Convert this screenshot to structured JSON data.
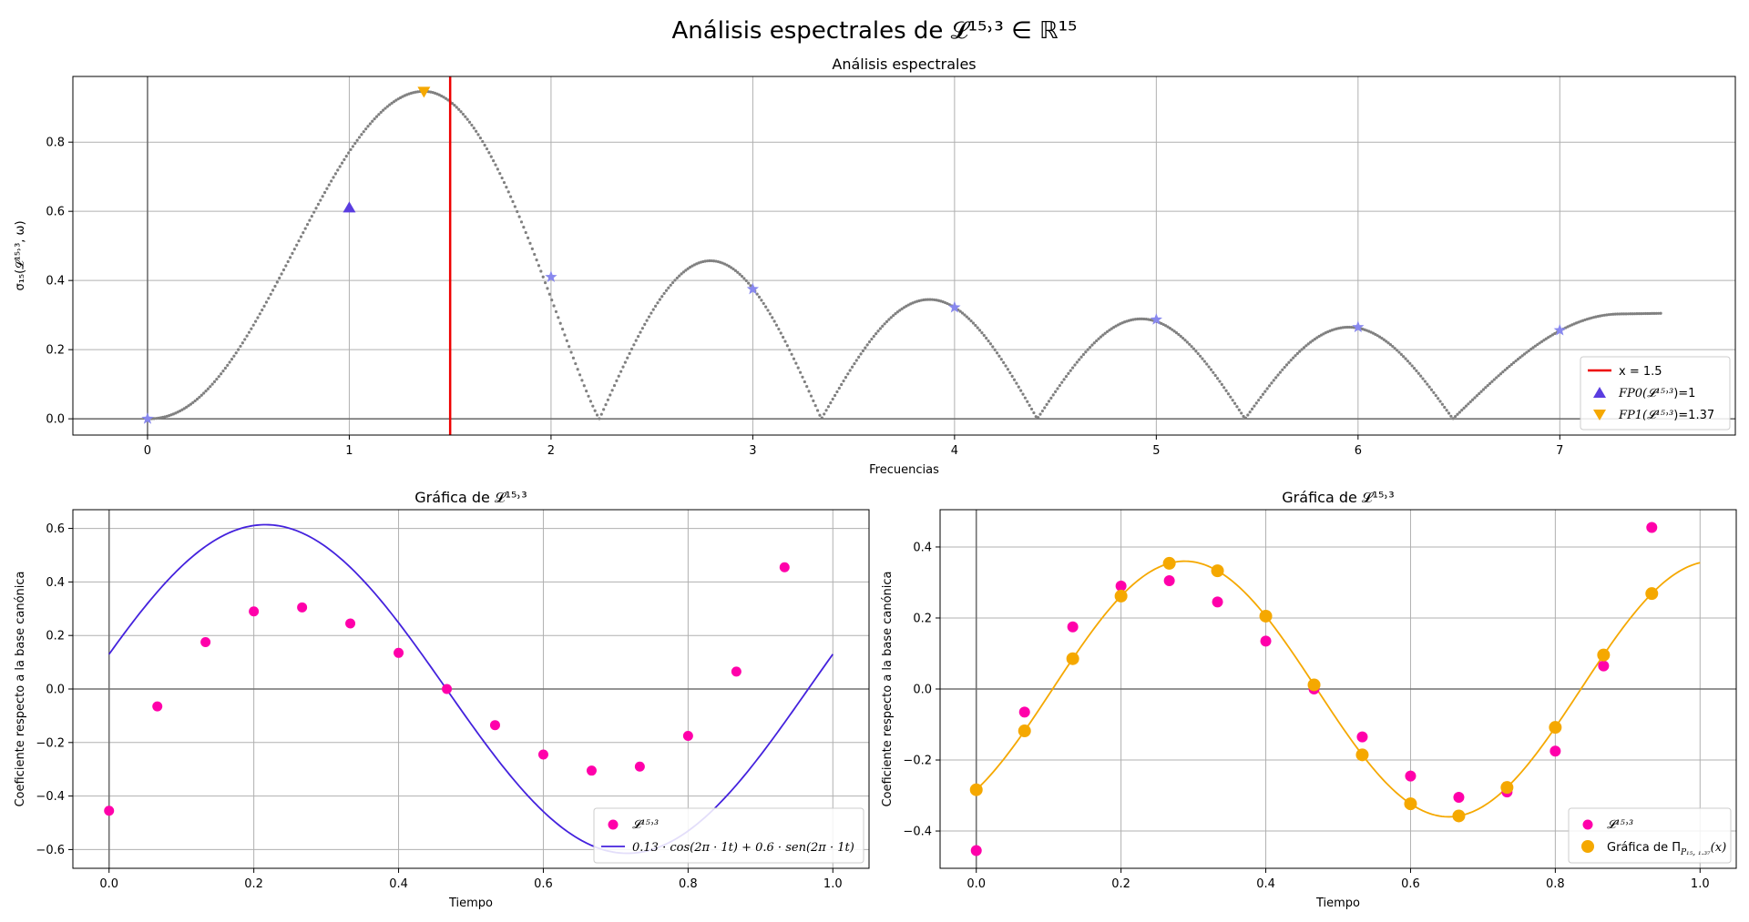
{
  "figure": {
    "suptitle": "Análisis espectrales de 𝓛¹⁵˒³ ∈ ℝ¹⁵"
  },
  "chart_data": [
    {
      "type": "scatter",
      "title": "Análisis espectrales",
      "xlabel": "Frecuencias",
      "ylabel": "σ₁₅(𝓛¹⁵˒³, ω)",
      "xlim": [
        -0.37,
        7.87
      ],
      "ylim": [
        -0.047,
        0.99
      ],
      "xticks": [
        "0",
        "1",
        "2",
        "3",
        "4",
        "5",
        "6",
        "7"
      ],
      "yticks": [
        "0.0",
        "0.2",
        "0.4",
        "0.6",
        "0.8"
      ],
      "grid": true,
      "legend_position": "lower-right",
      "curve": {
        "x_range": [
          0,
          7.5
        ],
        "peak_freq": 1.37,
        "peak_value": 0.947,
        "zeros": [
          2.24,
          3.34,
          4.41,
          5.44,
          6.47
        ],
        "lobe_peaks": [
          {
            "x": 2.76,
            "y": 0.457
          },
          {
            "x": 3.87,
            "y": 0.345
          },
          {
            "x": 4.93,
            "y": 0.289
          },
          {
            "x": 5.96,
            "y": 0.265
          }
        ],
        "end_value": 0.305,
        "color": "#808080"
      },
      "star_points": {
        "x": [
          0,
          2,
          3,
          4,
          5,
          6,
          7
        ],
        "y": [
          0.0,
          0.41,
          0.375,
          0.322,
          0.287,
          0.265,
          0.256
        ],
        "color": "#8888ee"
      },
      "vertical_line": {
        "x": 1.5,
        "label": "x = 1.5",
        "color": "#ee0000"
      },
      "fp0": {
        "x": 1,
        "y": 0.61,
        "label_prefix": "FP0(",
        "label_math": "𝓛¹⁵˒³",
        "label_suffix": ")=1",
        "color": "#5a3de0"
      },
      "fp1": {
        "x": 1.37,
        "y": 0.947,
        "label_prefix": "FP1(",
        "label_math": "𝓛¹⁵˒³",
        "label_suffix": ")=1.37",
        "color": "#f5a800"
      }
    },
    {
      "type": "scatter",
      "title": "Gráfica de 𝓛¹⁵˒³",
      "xlabel": "Tiempo",
      "ylabel": "Coeficiente respecto a la base canónica",
      "xlim": [
        -0.05,
        1.05
      ],
      "ylim": [
        -0.67,
        0.67
      ],
      "xticks": [
        "0.0",
        "0.2",
        "0.4",
        "0.6",
        "0.8",
        "1.0"
      ],
      "yticks": [
        "−0.6",
        "−0.4",
        "−0.2",
        "0.0",
        "0.2",
        "0.4",
        "0.6"
      ],
      "grid": true,
      "legend_position": "lower-right",
      "series": [
        {
          "name": "𝓛¹⁵˒³",
          "kind": "points",
          "color": "#ff00aa",
          "x": [
            0.0,
            0.0667,
            0.1333,
            0.2,
            0.2667,
            0.3333,
            0.4,
            0.4667,
            0.5333,
            0.6,
            0.6667,
            0.7333,
            0.8,
            0.8667,
            0.9333
          ],
          "y": [
            -0.455,
            -0.065,
            0.175,
            0.29,
            0.305,
            0.245,
            0.135,
            0.0,
            -0.135,
            -0.245,
            -0.305,
            -0.29,
            -0.175,
            0.065,
            0.455
          ]
        },
        {
          "name": "0.13 · cos(2π · 1t) + 0.6 · sen(2π · 1t)",
          "kind": "line",
          "color": "#4422dd",
          "a": 0.13,
          "b": 0.6,
          "freq": 1,
          "x_range": [
            0,
            1
          ]
        }
      ]
    },
    {
      "type": "scatter",
      "title": "Gráfica de 𝓛¹⁵˒³",
      "xlabel": "Tiempo",
      "ylabel": "Coeficiente respecto a la base canónica",
      "xlim": [
        -0.05,
        1.05
      ],
      "ylim": [
        -0.505,
        0.505
      ],
      "xticks": [
        "0.0",
        "0.2",
        "0.4",
        "0.6",
        "0.8",
        "1.0"
      ],
      "yticks": [
        "−0.4",
        "−0.2",
        "0.0",
        "0.2",
        "0.4"
      ],
      "grid": true,
      "legend_position": "lower-right",
      "series": [
        {
          "name": "𝓛¹⁵˒³",
          "kind": "points",
          "color": "#ff00aa",
          "x": [
            0.0,
            0.0667,
            0.1333,
            0.2,
            0.2667,
            0.3333,
            0.4,
            0.4667,
            0.5333,
            0.6,
            0.6667,
            0.7333,
            0.8,
            0.8667,
            0.9333
          ],
          "y": [
            -0.455,
            -0.065,
            0.175,
            0.29,
            0.305,
            0.245,
            0.135,
            0.0,
            -0.135,
            -0.245,
            -0.305,
            -0.29,
            -0.175,
            0.065,
            0.455
          ]
        },
        {
          "name": "Gráfica de Π",
          "name_sub": "P₁₅, ₁.₃₇",
          "name_tail": "(x)",
          "kind": "line+points",
          "color": "#f5a800",
          "amplitude": 0.36,
          "freq": 1.37,
          "phase": -0.908,
          "x_range": [
            0,
            1
          ],
          "sample_x": [
            0.0,
            0.0667,
            0.1333,
            0.2,
            0.2667,
            0.3333,
            0.4,
            0.4667,
            0.5333,
            0.6,
            0.6667,
            0.7333,
            0.8,
            0.8667,
            0.9333
          ]
        }
      ]
    }
  ]
}
